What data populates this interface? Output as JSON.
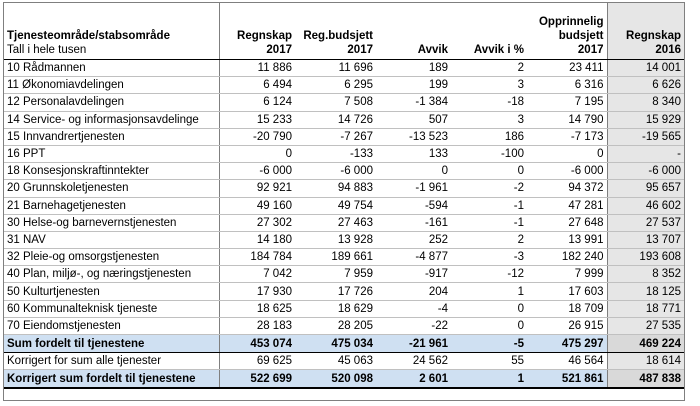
{
  "header": {
    "title": "Tjenesteområde/stabsområde",
    "subtitle": "Tall i hele tusen",
    "columns": [
      [
        "Regnskap",
        "2017"
      ],
      [
        "Reg.budsjett",
        "2017"
      ],
      [
        "Avvik"
      ],
      [
        "Avvik i %"
      ],
      [
        "Opprinnelig",
        "budsjett",
        "2017"
      ],
      [
        "Regnskap",
        "2016"
      ]
    ]
  },
  "rows": [
    {
      "code": "10",
      "name": "Rådmannen",
      "cells": [
        "11 886",
        "11 696",
        "189",
        "2",
        "23 411",
        "14 001"
      ]
    },
    {
      "code": "11",
      "name": "Økonomiavdelingen",
      "cells": [
        "6 494",
        "6 295",
        "199",
        "3",
        "6 316",
        "6 626"
      ]
    },
    {
      "code": "12",
      "name": "Personalavdelingen",
      "cells": [
        "6 124",
        "7 508",
        "-1 384",
        "-18",
        "7 195",
        "8 340"
      ]
    },
    {
      "code": "14",
      "name": "Service- og informasjonsavdelinge",
      "cells": [
        "15 233",
        "14 726",
        "507",
        "3",
        "14 790",
        "15 929"
      ]
    },
    {
      "code": "15",
      "name": "Innvandrertjenesten",
      "cells": [
        "-20 790",
        "-7 267",
        "-13 523",
        "186",
        "-7 173",
        "-19 565"
      ]
    },
    {
      "code": "16",
      "name": "PPT",
      "cells": [
        "0",
        "-133",
        "133",
        "-100",
        "0",
        "-"
      ]
    },
    {
      "code": "18",
      "name": "Konsesjonskraftinntekter",
      "cells": [
        "-6 000",
        "-6 000",
        "0",
        "0",
        "-6 000",
        "-6 000"
      ]
    },
    {
      "code": "20",
      "name": "Grunnskoletjenesten",
      "cells": [
        "92 921",
        "94 883",
        "-1 961",
        "-2",
        "94 372",
        "95 657"
      ]
    },
    {
      "code": "21",
      "name": "Barnehagetjenesten",
      "cells": [
        "49 160",
        "49 754",
        "-594",
        "-1",
        "47 281",
        "46 602"
      ]
    },
    {
      "code": "30",
      "name": "Helse-og barnevernstjenesten",
      "cells": [
        "27 302",
        "27 463",
        "-161",
        "-1",
        "27 648",
        "27 537"
      ]
    },
    {
      "code": "31",
      "name": "NAV",
      "cells": [
        "14 180",
        "13 928",
        "252",
        "2",
        "13 991",
        "13 707"
      ]
    },
    {
      "code": "32",
      "name": "Pleie-og omsorgstjenesten",
      "cells": [
        "184 784",
        "189 661",
        "-4 877",
        "-3",
        "182 240",
        "193 608"
      ]
    },
    {
      "code": "40",
      "name": "Plan, miljø-, og næringstjenesten",
      "cells": [
        "7 042",
        "7 959",
        "-917",
        "-12",
        "7 999",
        "8 352"
      ]
    },
    {
      "code": "50",
      "name": "Kulturtjenesten",
      "cells": [
        "17 930",
        "17 726",
        "204",
        "1",
        "17 603",
        "18 125"
      ]
    },
    {
      "code": "60",
      "name": "Kommunalteknisk tjeneste",
      "cells": [
        "18 625",
        "18 629",
        "-4",
        "0",
        "18 709",
        "18 771"
      ]
    },
    {
      "code": "70",
      "name": "Eiendomstjenesten",
      "cells": [
        "28 183",
        "28 205",
        "-22",
        "0",
        "26 915",
        "27 535"
      ]
    }
  ],
  "sum_row": {
    "name": "Sum fordelt til tjenestene",
    "cells": [
      "453 074",
      "475 034",
      "-21 961",
      "-5",
      "475 297",
      "469 224"
    ]
  },
  "correction_row": {
    "name": "Korrigert for sum alle tjenester",
    "cells": [
      "69 625",
      "45 063",
      "24 562",
      "55",
      "46 564",
      "18 614"
    ]
  },
  "final_row": {
    "name": "Korrigert sum fordelt til tjenestene",
    "cells": [
      "522 699",
      "520 098",
      "2 601",
      "1",
      "521 861",
      "487 838"
    ]
  }
}
